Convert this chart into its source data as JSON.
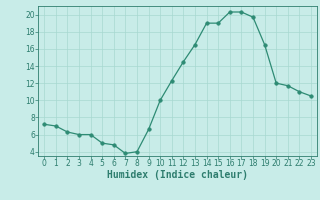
{
  "x": [
    0,
    1,
    2,
    3,
    4,
    5,
    6,
    7,
    8,
    9,
    10,
    11,
    12,
    13,
    14,
    15,
    16,
    17,
    18,
    19,
    20,
    21,
    22,
    23
  ],
  "y": [
    7.2,
    7.0,
    6.3,
    6.0,
    6.0,
    5.0,
    4.8,
    3.8,
    4.0,
    6.6,
    10.0,
    12.3,
    14.5,
    16.5,
    19.0,
    19.0,
    20.3,
    20.3,
    19.7,
    16.5,
    12.0,
    11.7,
    11.0,
    10.5
  ],
  "line_color": "#2e8b74",
  "marker": "o",
  "marker_size": 2.5,
  "bg_color": "#c8ece8",
  "grid_color": "#a8d8d0",
  "xlabel": "Humidex (Indice chaleur)",
  "xlim": [
    -0.5,
    23.5
  ],
  "ylim": [
    3.5,
    21.0
  ],
  "yticks": [
    4,
    6,
    8,
    10,
    12,
    14,
    16,
    18,
    20
  ],
  "xticks": [
    0,
    1,
    2,
    3,
    4,
    5,
    6,
    7,
    8,
    9,
    10,
    11,
    12,
    13,
    14,
    15,
    16,
    17,
    18,
    19,
    20,
    21,
    22,
    23
  ],
  "tick_color": "#2e7d6e",
  "label_fontsize": 7.0,
  "tick_fontsize": 5.5
}
